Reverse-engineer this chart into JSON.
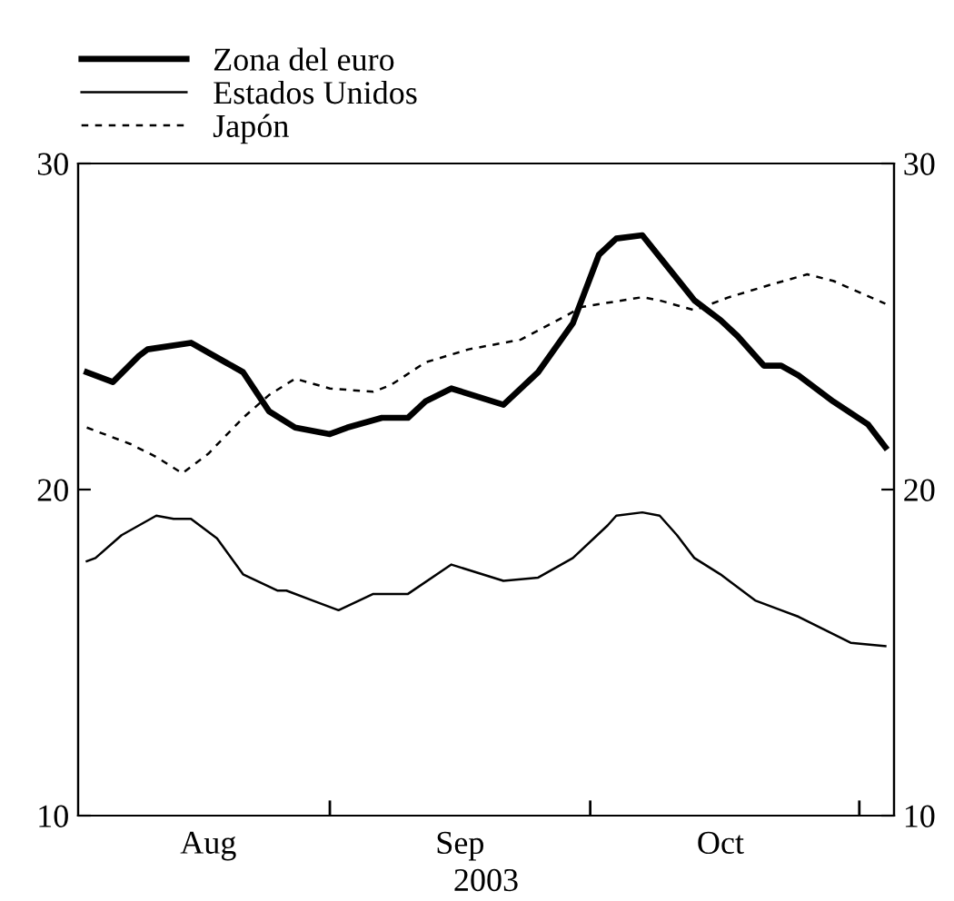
{
  "chart_data": {
    "type": "line",
    "xlabel": "2003",
    "legend": "top left",
    "xlim": [
      "2003-08-03",
      "2003-11-05"
    ],
    "xticks": [
      {
        "value": "2003-08-18",
        "label": "Aug"
      },
      {
        "value": "2003-09-16",
        "label": "Sep"
      },
      {
        "value": "2003-10-16",
        "label": "Oct"
      },
      {
        "value": "2003-09-01",
        "label": null
      },
      {
        "value": "2003-10-01",
        "label": null
      },
      {
        "value": "2003-11-01",
        "label": null
      }
    ],
    "ylim": [
      10,
      30
    ],
    "yticks": [
      10,
      20,
      30
    ],
    "y2lim": [
      10,
      30
    ],
    "y2ticks": [
      10,
      20,
      30
    ],
    "series": [
      {
        "name": "Zona del euro",
        "color": "#000000",
        "line_style": "solid",
        "x": [
          "2003-08-04",
          "2003-08-07",
          "2003-08-10",
          "2003-08-11",
          "2003-08-16",
          "2003-08-20",
          "2003-08-22",
          "2003-08-25",
          "2003-08-28",
          "2003-09-01",
          "2003-09-03",
          "2003-09-07",
          "2003-09-10",
          "2003-09-12",
          "2003-09-15",
          "2003-09-21",
          "2003-09-25",
          "2003-09-29",
          "2003-10-02",
          "2003-10-04",
          "2003-10-07",
          "2003-10-10",
          "2003-10-13",
          "2003-10-16",
          "2003-10-18",
          "2003-10-20",
          "2003-10-21",
          "2003-10-23",
          "2003-10-25",
          "2003-10-29",
          "2003-11-02",
          "2003-11-04"
        ],
        "values": [
          23.6,
          23.3,
          24.1,
          24.3,
          24.5,
          23.9,
          23.6,
          22.4,
          21.9,
          21.7,
          21.9,
          22.2,
          22.2,
          22.7,
          23.1,
          22.6,
          23.6,
          25.1,
          27.2,
          27.7,
          27.8,
          26.8,
          25.8,
          25.2,
          24.7,
          24.1,
          23.8,
          23.8,
          23.5,
          22.7,
          22.0,
          21.3
        ]
      },
      {
        "name": "Estados Unidos",
        "color": "#000000",
        "line_style": "solid",
        "x": [
          "2003-08-04",
          "2003-08-05",
          "2003-08-08",
          "2003-08-10",
          "2003-08-12",
          "2003-08-14",
          "2003-08-16",
          "2003-08-19",
          "2003-08-22",
          "2003-08-26",
          "2003-08-27",
          "2003-08-30",
          "2003-09-02",
          "2003-09-06",
          "2003-09-10",
          "2003-09-15",
          "2003-09-21",
          "2003-09-25",
          "2003-09-29",
          "2003-10-03",
          "2003-10-04",
          "2003-10-07",
          "2003-10-09",
          "2003-10-11",
          "2003-10-13",
          "2003-10-16",
          "2003-10-17",
          "2003-10-20",
          "2003-10-23",
          "2003-10-25",
          "2003-10-28",
          "2003-10-31",
          "2003-11-04"
        ],
        "values": [
          17.8,
          17.9,
          18.6,
          18.9,
          19.2,
          19.1,
          19.1,
          18.5,
          17.4,
          16.9,
          16.9,
          16.6,
          16.3,
          16.8,
          16.8,
          17.7,
          17.2,
          17.3,
          17.9,
          18.9,
          19.2,
          19.3,
          19.2,
          18.6,
          17.9,
          17.4,
          17.2,
          16.6,
          16.3,
          16.1,
          15.7,
          15.3,
          15.2
        ]
      },
      {
        "name": "Japón",
        "color": "#000000",
        "line_style": "dashed",
        "x": [
          "2003-08-04",
          "2003-08-09",
          "2003-08-12",
          "2003-08-15",
          "2003-08-18",
          "2003-08-22",
          "2003-08-25",
          "2003-08-28",
          "2003-09-01",
          "2003-09-06",
          "2003-09-08",
          "2003-09-12",
          "2003-09-17",
          "2003-09-23",
          "2003-09-28",
          "2003-09-30",
          "2003-10-07",
          "2003-10-09",
          "2003-10-13",
          "2003-10-17",
          "2003-10-22",
          "2003-10-26",
          "2003-10-29",
          "2003-11-04"
        ],
        "values": [
          21.9,
          21.4,
          21.0,
          20.5,
          21.1,
          22.2,
          22.9,
          23.4,
          23.1,
          23.0,
          23.2,
          23.9,
          24.3,
          24.6,
          25.3,
          25.6,
          25.9,
          25.8,
          25.5,
          25.9,
          26.3,
          26.6,
          26.4,
          25.7
        ]
      }
    ]
  }
}
